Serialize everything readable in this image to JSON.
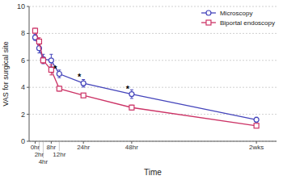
{
  "chart_data": {
    "type": "line",
    "xlabel": "Time",
    "ylabel": "VAS for surgical site",
    "x": [
      0,
      2,
      4,
      8,
      12,
      24,
      48,
      110
    ],
    "xlim": [
      -3,
      120
    ],
    "xticks": [
      {
        "value": 0,
        "label": "0hr"
      },
      {
        "value": 2,
        "label": "2hr"
      },
      {
        "value": 4,
        "label": "4hr"
      },
      {
        "value": 8,
        "label": "8hr"
      },
      {
        "value": 12,
        "label": "12hr"
      },
      {
        "value": 24,
        "label": "24hr"
      },
      {
        "value": 48,
        "label": "48hr"
      },
      {
        "value": 110,
        "label": "2wks"
      }
    ],
    "ylim": [
      0,
      10
    ],
    "yticks": [
      0,
      2,
      4,
      6,
      8,
      10
    ],
    "grid": true,
    "legend": "upper right",
    "series": [
      {
        "name": "Microscopy",
        "color": "#4444bb",
        "marker": "circle",
        "values": [
          7.7,
          6.9,
          6.1,
          6.0,
          5.0,
          4.3,
          3.5,
          1.6
        ],
        "errors": [
          0.22,
          0.35,
          0.35,
          0.45,
          0.28,
          0.28,
          0.32,
          0.18
        ]
      },
      {
        "name": "Biportal endoscopy",
        "color": "#cc3366",
        "marker": "square",
        "values": [
          8.2,
          7.4,
          6.0,
          5.3,
          3.9,
          3.4,
          2.5,
          1.15
        ],
        "errors": [
          0.18,
          0.28,
          0.22,
          0.38,
          0.18,
          0.13,
          0.18,
          0.12
        ]
      }
    ],
    "annotations": [
      {
        "text": "*",
        "x": 12,
        "y": 5.42
      },
      {
        "text": "*",
        "x": 24,
        "y": 4.85
      },
      {
        "text": "*",
        "x": 48,
        "y": 3.98
      }
    ]
  }
}
